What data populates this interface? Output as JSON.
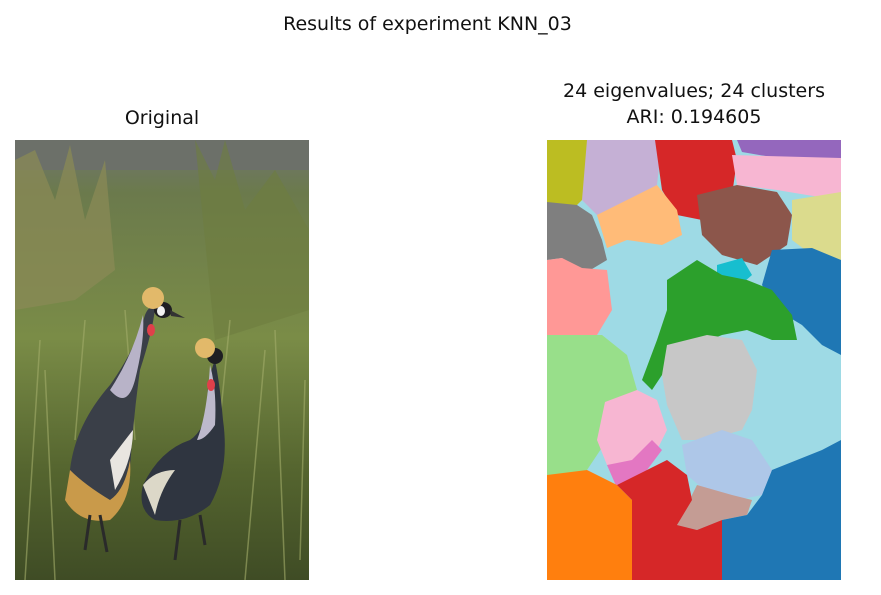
{
  "figure": {
    "suptitle": "Results of experiment KNN_03"
  },
  "chart_data": {
    "type": "image",
    "panels": [
      {
        "title": "Original",
        "content": "photograph"
      },
      {
        "title_line1": "24 eigenvalues; 24 clusters",
        "title_line2": "ARI: 0.194605",
        "eigenvalues": 24,
        "clusters": 24,
        "ari": 0.194605,
        "content": "segmentation map"
      }
    ]
  },
  "colors": {
    "sky": "#6f7470",
    "grass_light": "#7b8d4a",
    "grass_dark": "#3d4b24",
    "ground": "#4f5a2c",
    "crane_body": "#3b3f47",
    "crane_neck": "#b7b3c6",
    "crane_wing": "#c99a4a",
    "crown": "#e2b96a",
    "wattle": "#e0404a",
    "seg": [
      "#bcbd22",
      "#c5b0d5",
      "#d62728",
      "#9467bd",
      "#f7b6d2",
      "#7f7f7f",
      "#ffbb78",
      "#8c564b",
      "#dbdb8d",
      "#9edae5",
      "#17becf",
      "#1f77b4",
      "#ff9896",
      "#2ca02c",
      "#98df8a",
      "#c7c7c7",
      "#e377c2",
      "#aec7e8",
      "#ff7f0e",
      "#c49c94"
    ]
  }
}
